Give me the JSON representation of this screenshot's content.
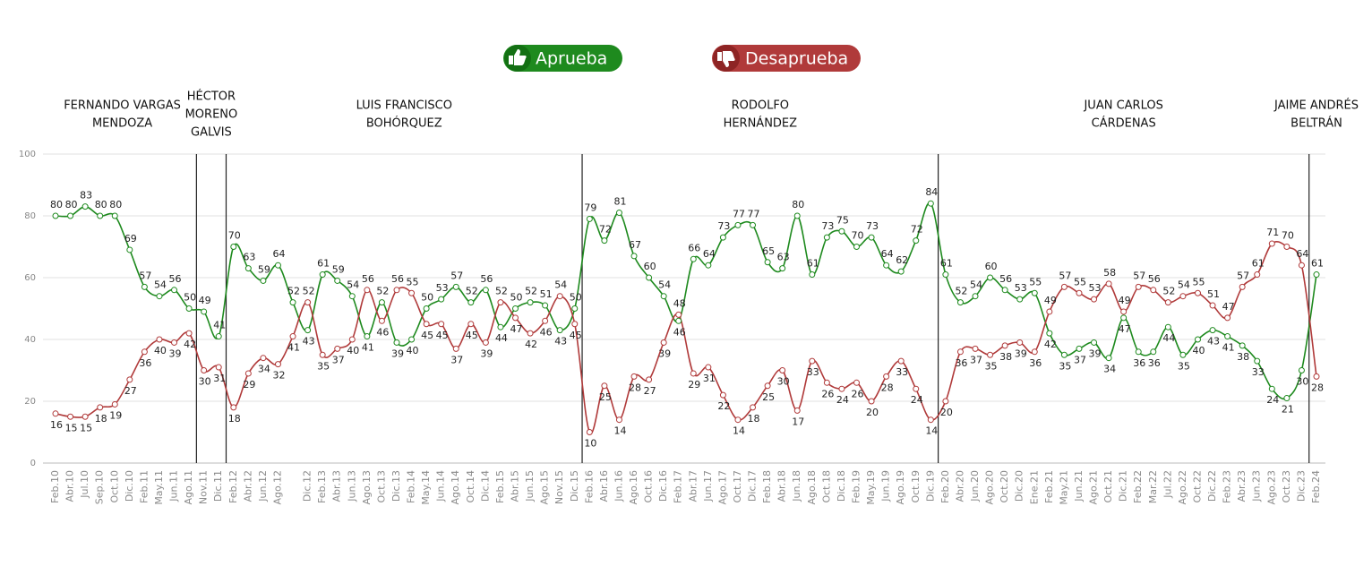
{
  "chart_data": {
    "type": "line",
    "categories": [
      "Feb.10",
      "Abr.10",
      "Jul.10",
      "Sep.10",
      "Oct.10",
      "Dic.10",
      "Feb.11",
      "May.11",
      "Jun.11",
      "Ago.11",
      "Nov.11",
      "Dic.11",
      "Feb.12",
      "Abr.12",
      "Jun.12",
      "Ago.12",
      null,
      "Dic.12",
      "Feb.13",
      "Abr.13",
      "Jun.13",
      "Ago.13",
      "Oct.13",
      "Dic.13",
      "Feb.14",
      "May.14",
      "Jun.14",
      "Ago.14",
      "Oct.14",
      "Dic.14",
      "Feb.15",
      "Abr.15",
      "Jun.15",
      "Ago.15",
      "Nov.15",
      "Dic.15",
      "Feb.16",
      "Abr.16",
      "Jun.16",
      "Ago.16",
      "Oct.16",
      "Dic.16",
      "Feb.17",
      "Abr.17",
      "Jun.17",
      "Ago.17",
      "Oct.17",
      "Dic.17",
      "Feb.18",
      "Abr.18",
      "Jun.18",
      "Ago.18",
      "Oct.18",
      "Dic.18",
      "Feb.19",
      "May.19",
      "Jun.19",
      "Ago.19",
      "Oct.19",
      "Dic.19",
      "Feb.20",
      "Abr.20",
      "Jun.20",
      "Ago.20",
      "Oct.20",
      "Dic.20",
      "Ene.21",
      "Feb.21",
      "May.21",
      "Jun.21",
      "Ago.21",
      "Oct.21",
      "Dic.21",
      "Feb.22",
      "Mar.22",
      "Jul.22",
      "Ago.22",
      "Oct.22",
      "Dic.22",
      "Feb.23",
      "Abr.23",
      "Jun.23",
      "Ago.23",
      "Oct.23",
      "Dic.23",
      "Feb.24"
    ],
    "series": [
      {
        "name": "Aprueba",
        "color": "#1e8a1e",
        "values": [
          80,
          80,
          83,
          80,
          80,
          69,
          57,
          54,
          56,
          50,
          49,
          41,
          70,
          63,
          59,
          64,
          52,
          43,
          61,
          59,
          54,
          41,
          52,
          39,
          40,
          50,
          53,
          57,
          52,
          56,
          44,
          50,
          52,
          51,
          43,
          50,
          79,
          72,
          81,
          67,
          60,
          54,
          46,
          66,
          64,
          73,
          77,
          77,
          65,
          63,
          80,
          61,
          73,
          75,
          70,
          73,
          64,
          62,
          72,
          84,
          61,
          52,
          54,
          60,
          56,
          53,
          55,
          42,
          35,
          37,
          39,
          34,
          47,
          36,
          36,
          44,
          35,
          40,
          43,
          41,
          38,
          33,
          24,
          21,
          30,
          61
        ]
      },
      {
        "name": "Desaprueba",
        "color": "#b03a3a",
        "values": [
          16,
          15,
          15,
          18,
          19,
          27,
          36,
          40,
          39,
          42,
          30,
          31,
          18,
          29,
          34,
          32,
          41,
          52,
          35,
          37,
          40,
          56,
          46,
          56,
          55,
          45,
          45,
          37,
          45,
          39,
          52,
          47,
          42,
          46,
          54,
          45,
          10,
          25,
          14,
          28,
          27,
          39,
          48,
          29,
          31,
          22,
          14,
          18,
          25,
          30,
          17,
          33,
          26,
          24,
          26,
          20,
          28,
          33,
          24,
          14,
          20,
          36,
          37,
          35,
          38,
          39,
          36,
          49,
          57,
          55,
          53,
          58,
          49,
          57,
          56,
          52,
          54,
          55,
          51,
          47,
          57,
          61,
          71,
          70,
          64,
          28
        ]
      }
    ],
    "ylim": [
      0,
      100
    ],
    "yticks": [
      0,
      20,
      40,
      60,
      80,
      100
    ],
    "grid": true,
    "annotations": [
      {
        "lines": [
          "FERNANDO VARGAS",
          "MENDOZA"
        ],
        "start": "Feb.10"
      },
      {
        "lines": [
          "HÉCTOR",
          "MORENO",
          "GALVIS"
        ],
        "start": "Nov.11"
      },
      {
        "lines": [
          "LUIS FRANCISCO",
          "BOHÓRQUEZ"
        ],
        "start": "Feb.12"
      },
      {
        "lines": [
          "RODOLFO",
          "HERNÁNDEZ"
        ],
        "start": "Feb.16"
      },
      {
        "lines": [
          "JUAN CARLOS",
          "CÁRDENAS"
        ],
        "start": "Feb.20"
      },
      {
        "lines": [
          "JAIME ANDRÉS",
          "BELTRÁN"
        ],
        "start": "Feb.24"
      }
    ]
  }
}
